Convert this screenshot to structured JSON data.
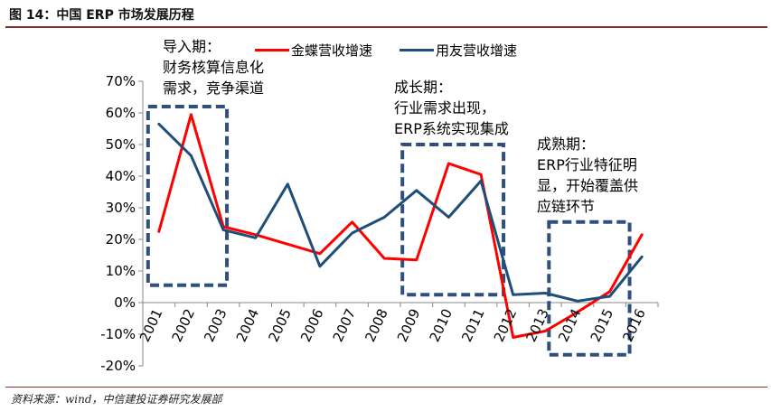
{
  "header": {
    "title": "图 14：中国 ERP 市场发展历程"
  },
  "footer": {
    "source": "资料来源：wind，中信建投证券研究发展部"
  },
  "colors": {
    "series_red": "#ff0000",
    "series_blue": "#1f4e79",
    "frame_rule": "#7f2d2d",
    "box_dash": "#2f4f7f"
  },
  "annotations": {
    "intro": [
      "导入期：",
      "财务核算信息化",
      "需求，竞争渠道"
    ],
    "growth": [
      "成长期：",
      "行业需求出现，",
      "ERP系统实现集成"
    ],
    "mature": [
      "成熟期：",
      "ERP行业特征明",
      "显，开始覆盖供",
      "应链环节"
    ]
  },
  "chart_data": {
    "type": "line",
    "title": "",
    "xlabel": "",
    "ylabel": "",
    "categories": [
      "2001",
      "2002",
      "2003",
      "2004",
      "2005",
      "2006",
      "2007",
      "2008",
      "2009",
      "2010",
      "2011",
      "2012",
      "2013",
      "2014",
      "2015",
      "2016"
    ],
    "series": [
      {
        "name": "金蝶营收增速",
        "color": "#ff0000",
        "values": [
          22.5,
          59.5,
          24,
          21.5,
          18.5,
          15.5,
          25.5,
          14,
          13.5,
          44,
          40.5,
          -11,
          -9,
          -3,
          3.5,
          21.5
        ]
      },
      {
        "name": "用友营收增速",
        "color": "#1f4e79",
        "values": [
          56.5,
          46.5,
          23,
          20.5,
          37.5,
          11.5,
          22,
          27,
          35.5,
          27,
          38.5,
          2.5,
          3,
          0.5,
          2,
          14.5
        ]
      }
    ],
    "ylim": [
      -20,
      70
    ],
    "yticks": [
      -20,
      -10,
      0,
      10,
      20,
      30,
      40,
      50,
      60,
      70
    ],
    "ytick_labels": [
      "-20%",
      "-10%",
      "0%",
      "10%",
      "20%",
      "30%",
      "40%",
      "50%",
      "60%",
      "70%"
    ],
    "grid": false,
    "legend": "top-center"
  }
}
